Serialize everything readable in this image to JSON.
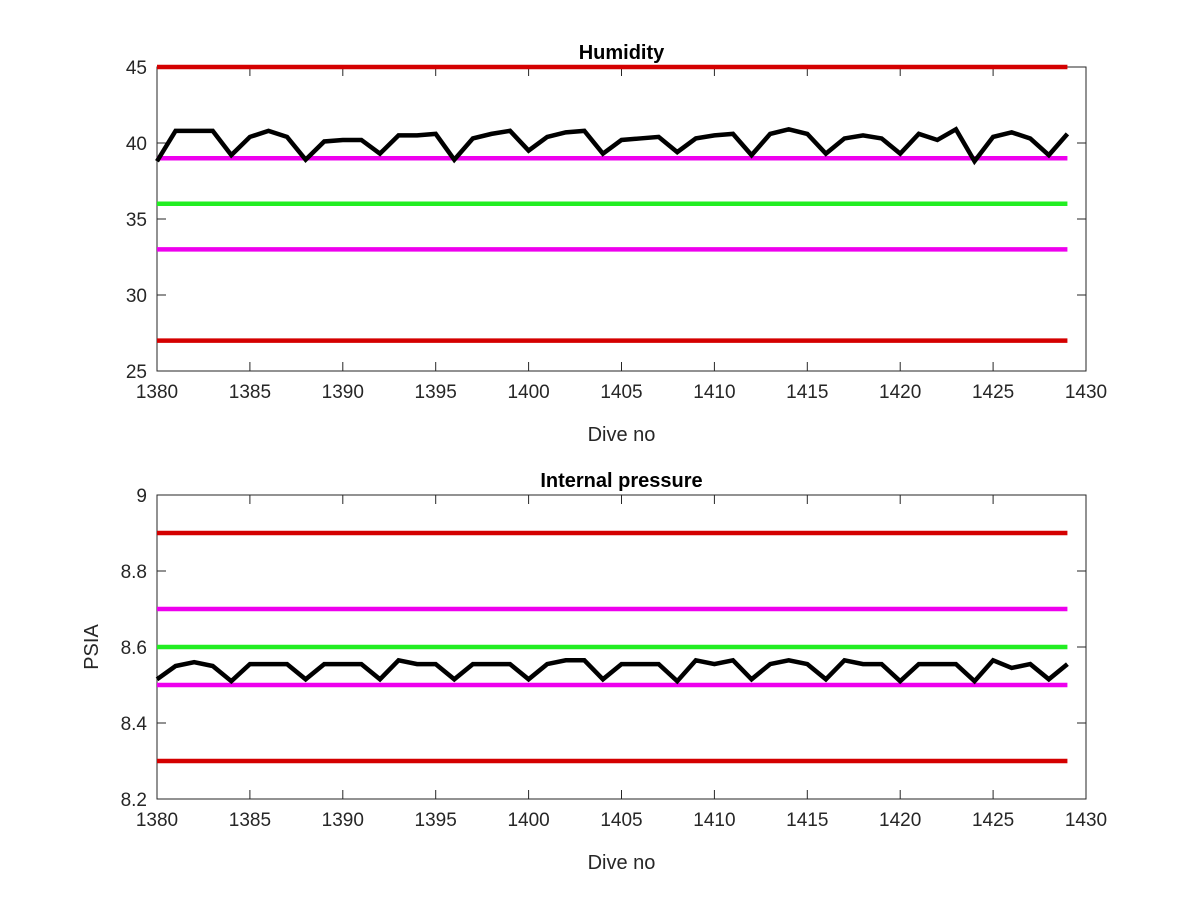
{
  "chart_data": [
    {
      "type": "line",
      "title": "Humidity",
      "xlabel": "Dive no",
      "ylabel": "",
      "xlim": [
        1380,
        1430
      ],
      "ylim": [
        25,
        45
      ],
      "xticks": [
        1380,
        1385,
        1390,
        1395,
        1400,
        1405,
        1410,
        1415,
        1420,
        1425,
        1430
      ],
      "yticks": [
        25,
        30,
        35,
        40,
        45
      ],
      "grid": false,
      "reference_lines": [
        {
          "y": 45,
          "color": "#d40000"
        },
        {
          "y": 39,
          "color": "#ee00ee"
        },
        {
          "y": 36,
          "color": "#22ee22"
        },
        {
          "y": 33,
          "color": "#ee00ee"
        },
        {
          "y": 27,
          "color": "#d40000"
        }
      ],
      "series": [
        {
          "color": "#000000",
          "x": [
            1380,
            1381,
            1382,
            1383,
            1384,
            1385,
            1386,
            1387,
            1388,
            1389,
            1390,
            1391,
            1392,
            1393,
            1394,
            1395,
            1396,
            1397,
            1398,
            1399,
            1400,
            1401,
            1402,
            1403,
            1404,
            1405,
            1406,
            1407,
            1408,
            1409,
            1410,
            1411,
            1412,
            1413,
            1414,
            1415,
            1416,
            1417,
            1418,
            1419,
            1420,
            1421,
            1422,
            1423,
            1424,
            1425,
            1426,
            1427,
            1428,
            1429
          ],
          "y": [
            38.8,
            40.8,
            40.8,
            40.8,
            39.2,
            40.4,
            40.8,
            40.4,
            38.9,
            40.1,
            40.2,
            40.2,
            39.3,
            40.5,
            40.5,
            40.6,
            38.9,
            40.3,
            40.6,
            40.8,
            39.5,
            40.4,
            40.7,
            40.8,
            39.3,
            40.2,
            40.3,
            40.4,
            39.4,
            40.3,
            40.5,
            40.6,
            39.2,
            40.6,
            40.9,
            40.6,
            39.3,
            40.3,
            40.5,
            40.3,
            39.3,
            40.6,
            40.2,
            40.9,
            38.8,
            40.4,
            40.7,
            40.3,
            39.2,
            40.6
          ]
        }
      ]
    },
    {
      "type": "line",
      "title": "Internal pressure",
      "xlabel": "Dive no",
      "ylabel": "PSIA",
      "xlim": [
        1380,
        1430
      ],
      "ylim": [
        8.2,
        9
      ],
      "xticks": [
        1380,
        1385,
        1390,
        1395,
        1400,
        1405,
        1410,
        1415,
        1420,
        1425,
        1430
      ],
      "yticks": [
        8.2,
        8.4,
        8.6,
        8.8,
        9
      ],
      "grid": false,
      "reference_lines": [
        {
          "y": 8.9,
          "color": "#d40000"
        },
        {
          "y": 8.7,
          "color": "#ee00ee"
        },
        {
          "y": 8.6,
          "color": "#22ee22"
        },
        {
          "y": 8.5,
          "color": "#ee00ee"
        },
        {
          "y": 8.3,
          "color": "#d40000"
        }
      ],
      "series": [
        {
          "color": "#000000",
          "x": [
            1380,
            1381,
            1382,
            1383,
            1384,
            1385,
            1386,
            1387,
            1388,
            1389,
            1390,
            1391,
            1392,
            1393,
            1394,
            1395,
            1396,
            1397,
            1398,
            1399,
            1400,
            1401,
            1402,
            1403,
            1404,
            1405,
            1406,
            1407,
            1408,
            1409,
            1410,
            1411,
            1412,
            1413,
            1414,
            1415,
            1416,
            1417,
            1418,
            1419,
            1420,
            1421,
            1422,
            1423,
            1424,
            1425,
            1426,
            1427,
            1428,
            1429
          ],
          "y": [
            8.515,
            8.55,
            8.56,
            8.55,
            8.51,
            8.555,
            8.555,
            8.555,
            8.515,
            8.555,
            8.555,
            8.555,
            8.515,
            8.565,
            8.555,
            8.555,
            8.515,
            8.555,
            8.555,
            8.555,
            8.515,
            8.555,
            8.565,
            8.565,
            8.515,
            8.555,
            8.555,
            8.555,
            8.51,
            8.565,
            8.555,
            8.565,
            8.515,
            8.555,
            8.565,
            8.555,
            8.515,
            8.565,
            8.555,
            8.555,
            8.51,
            8.555,
            8.555,
            8.555,
            8.51,
            8.565,
            8.545,
            8.555,
            8.515,
            8.555
          ]
        }
      ]
    }
  ]
}
